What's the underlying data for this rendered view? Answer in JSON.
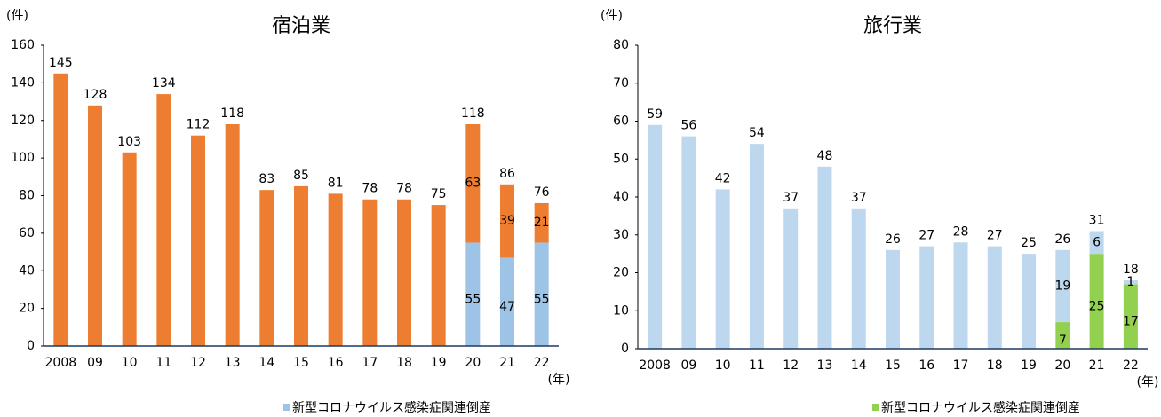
{
  "chart_data": [
    {
      "type": "bar",
      "title": "宿泊業",
      "ylabel": "(件)",
      "xlabel": "(年)",
      "categories": [
        "2008",
        "09",
        "10",
        "11",
        "12",
        "13",
        "14",
        "15",
        "16",
        "17",
        "18",
        "19",
        "20",
        "21",
        "22"
      ],
      "series": [
        {
          "name": "新型コロナウイルス感染症関連倒産",
          "color": "#9dc3e6",
          "values": [
            null,
            null,
            null,
            null,
            null,
            null,
            null,
            null,
            null,
            null,
            null,
            null,
            55,
            47,
            55
          ]
        },
        {
          "color": "#ed7d31",
          "values": [
            145,
            128,
            103,
            134,
            112,
            118,
            83,
            85,
            81,
            78,
            78,
            75,
            63,
            39,
            21
          ]
        }
      ],
      "totals": [
        145,
        128,
        103,
        134,
        112,
        118,
        83,
        85,
        81,
        78,
        78,
        75,
        118,
        86,
        76
      ],
      "ylim": [
        0,
        160
      ],
      "yticks": [
        0,
        20,
        40,
        60,
        80,
        100,
        120,
        140,
        160
      ],
      "stacked": true
    },
    {
      "type": "bar",
      "title": "旅行業",
      "ylabel": "(件)",
      "xlabel": "(年)",
      "categories": [
        "2008",
        "09",
        "10",
        "11",
        "12",
        "13",
        "14",
        "15",
        "16",
        "17",
        "18",
        "19",
        "20",
        "21",
        "22"
      ],
      "series": [
        {
          "name": "新型コロナウイルス感染症関連倒産",
          "color": "#92d050",
          "values": [
            null,
            null,
            null,
            null,
            null,
            null,
            null,
            null,
            null,
            null,
            null,
            null,
            7,
            25,
            17
          ]
        },
        {
          "color": "#bdd7ee",
          "values": [
            59,
            56,
            42,
            54,
            37,
            48,
            37,
            26,
            27,
            28,
            27,
            25,
            19,
            6,
            1
          ]
        }
      ],
      "totals": [
        59,
        56,
        42,
        54,
        37,
        48,
        37,
        26,
        27,
        28,
        27,
        25,
        26,
        31,
        18
      ],
      "ylim": [
        0,
        80
      ],
      "yticks": [
        0,
        10,
        20,
        30,
        40,
        50,
        60,
        70,
        80
      ],
      "stacked": true
    }
  ]
}
